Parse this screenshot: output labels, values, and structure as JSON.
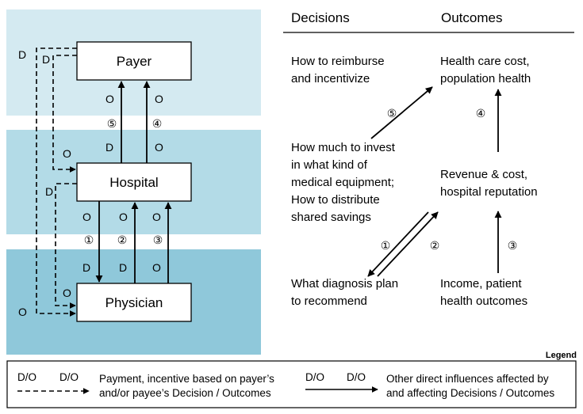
{
  "colors": {
    "band_payer": "#d4eaf1",
    "band_hospital": "#b3dbe7",
    "band_physician": "#8fc8da",
    "stroke": "#000000"
  },
  "left_panel": {
    "nodes": {
      "payer": "Payer",
      "hospital": "Hospital",
      "physician": "Physician"
    },
    "marks": {
      "d": "D",
      "o": "O"
    },
    "circled": {
      "n1": "①",
      "n2": "②",
      "n3": "③",
      "n4": "④",
      "n5": "⑤"
    }
  },
  "right_panel": {
    "headers": {
      "decisions": "Decisions",
      "outcomes": "Outcomes"
    },
    "payer_decision": [
      "How to reimburse",
      "and incentivize"
    ],
    "payer_outcome": [
      "Health care cost,",
      "population health"
    ],
    "hospital_decision": [
      "How much to invest",
      "in what kind of",
      "medical equipment;",
      "How to distribute",
      "shared savings"
    ],
    "hospital_outcome": [
      "Revenue & cost,",
      "hospital reputation"
    ],
    "physician_decision": [
      "What diagnosis plan",
      "to recommend"
    ],
    "physician_outcome": [
      "Income, patient",
      "health outcomes"
    ]
  },
  "legend": {
    "title": "Legend",
    "dashed_labels": [
      "D/O",
      "D/O"
    ],
    "dashed_text": [
      "Payment, incentive based on payer’s",
      "and/or payee’s Decision / Outcomes"
    ],
    "solid_labels": [
      "D/O",
      "D/O"
    ],
    "solid_text": [
      "Other direct influences affected by",
      "and affecting Decisions / Outcomes"
    ]
  }
}
